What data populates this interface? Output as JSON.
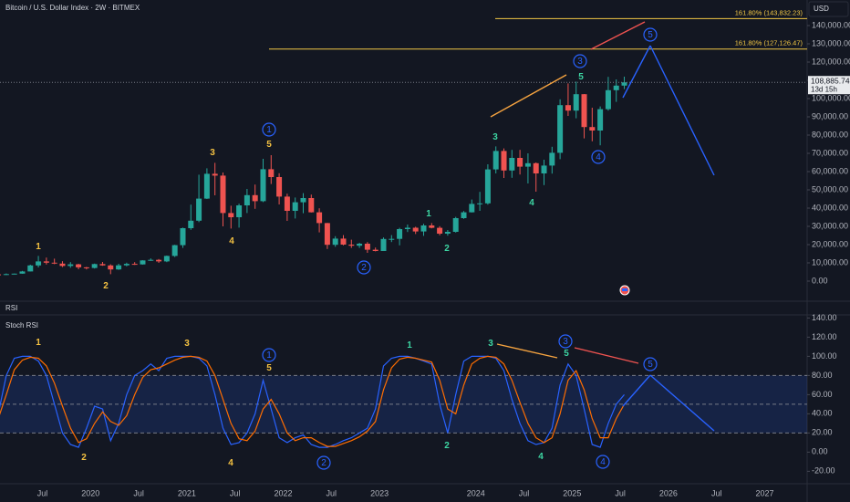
{
  "title": "Bitcoin / U.S. Dollar Index · 2W · BITMEX",
  "rsi_pane": {
    "title": "RSI"
  },
  "time_axis": {
    "xlim": [
      2019.06,
      2027.44
    ],
    "xticks": [
      {
        "value": 2019.5,
        "label": "Jul"
      },
      2020,
      {
        "value": 2020.5,
        "label": "Jul"
      },
      2021,
      {
        "value": 2021.5,
        "label": "Jul"
      },
      2022,
      {
        "value": 2022.5,
        "label": "Jul"
      },
      2023,
      2024,
      {
        "value": 2024.5,
        "label": "Jul"
      },
      2025,
      {
        "value": 2025.5,
        "label": "Jul"
      },
      2026,
      {
        "value": 2026.5,
        "label": "Jul"
      },
      2027
    ]
  },
  "chart_data": [
    {
      "type": "candlestick",
      "y_axis_label": "USD",
      "up_color": "#26a69a",
      "down_color": "#ef5350",
      "x": [
        "2019-01",
        "2019-02",
        "2019-03",
        "2019-04",
        "2019-05",
        "2019-06",
        "2019-07",
        "2019-08",
        "2019-09",
        "2019-10",
        "2019-11",
        "2019-12",
        "2020-01",
        "2020-02",
        "2020-03",
        "2020-04",
        "2020-05",
        "2020-06",
        "2020-07",
        "2020-08",
        "2020-09",
        "2020-10",
        "2020-11",
        "2020-12",
        "2021-01",
        "2021-02",
        "2021-03",
        "2021-04",
        "2021-05",
        "2021-06",
        "2021-07",
        "2021-08",
        "2021-09",
        "2021-10",
        "2021-11",
        "2021-12",
        "2022-01",
        "2022-02",
        "2022-03",
        "2022-04",
        "2022-05",
        "2022-06",
        "2022-07",
        "2022-08",
        "2022-09",
        "2022-10",
        "2022-11",
        "2022-12",
        "2023-01",
        "2023-02",
        "2023-03",
        "2023-04",
        "2023-05",
        "2023-06",
        "2023-07",
        "2023-08",
        "2023-09",
        "2023-10",
        "2023-11",
        "2023-12",
        "2024-01",
        "2024-02",
        "2024-03",
        "2024-04",
        "2024-05",
        "2024-06",
        "2024-07",
        "2024-08",
        "2024-09",
        "2024-10",
        "2024-11",
        "2024-12",
        "2025-01",
        "2025-02",
        "2025-03",
        "2025-04",
        "2025-05",
        "2025-06",
        "2025-07"
      ],
      "open": [
        3700,
        3450,
        3850,
        4100,
        5300,
        8600,
        10800,
        10100,
        9600,
        8300,
        9200,
        7550,
        7200,
        9350,
        8600,
        6400,
        8650,
        9450,
        9150,
        11350,
        11650,
        10800,
        13800,
        19700,
        29000,
        33100,
        45200,
        58800,
        57800,
        37300,
        35000,
        41500,
        47100,
        43800,
        61300,
        57000,
        46300,
        38500,
        43200,
        45500,
        37700,
        31800,
        19900,
        23300,
        20000,
        19400,
        20500,
        17200,
        16500,
        23100,
        23150,
        28500,
        29250,
        27200,
        30500,
        29200,
        26000,
        27000,
        34500,
        37700,
        42300,
        42600,
        61200,
        71300,
        60600,
        67500,
        62700,
        64600,
        59000,
        63300,
        70300,
        96400,
        93400,
        102400,
        84400,
        82500,
        94200,
        104600,
        107100
      ],
      "high": [
        3900,
        4200,
        4150,
        5600,
        9000,
        13800,
        12900,
        12300,
        10900,
        10400,
        9500,
        7800,
        9600,
        10500,
        9200,
        9500,
        10100,
        10400,
        11450,
        12450,
        12100,
        14000,
        19900,
        29300,
        41900,
        58300,
        61800,
        64800,
        59500,
        41300,
        42400,
        50500,
        52900,
        67000,
        69000,
        59100,
        47900,
        45800,
        48200,
        47400,
        39900,
        31900,
        24600,
        25200,
        22700,
        21000,
        21400,
        18400,
        23900,
        25200,
        29200,
        31000,
        29800,
        31400,
        31800,
        30100,
        28000,
        35200,
        38400,
        44700,
        48900,
        64000,
        73800,
        72700,
        71900,
        71900,
        70000,
        65000,
        66500,
        73600,
        99600,
        108300,
        109300,
        102500,
        95000,
        95700,
        111900,
        110500,
        112000
      ],
      "low": [
        3350,
        3350,
        3700,
        4050,
        5300,
        7500,
        9100,
        9300,
        7700,
        7300,
        6500,
        6400,
        6900,
        8400,
        3800,
        6150,
        8100,
        8900,
        9050,
        11100,
        10000,
        10400,
        13200,
        18200,
        28100,
        32300,
        45000,
        47000,
        30000,
        28800,
        29300,
        37300,
        39600,
        43300,
        53200,
        42000,
        33000,
        34300,
        37200,
        37600,
        26700,
        17600,
        18800,
        19600,
        18200,
        18200,
        15500,
        16300,
        16500,
        21400,
        19600,
        26900,
        25800,
        24800,
        28900,
        25100,
        24900,
        26600,
        34100,
        37600,
        38500,
        41900,
        59000,
        56500,
        56600,
        58400,
        53500,
        49000,
        52600,
        58900,
        66800,
        90500,
        89200,
        78200,
        76600,
        74400,
        93400,
        98200,
        105200
      ],
      "close": [
        3450,
        3850,
        4100,
        5300,
        8600,
        10800,
        10100,
        9600,
        8300,
        9200,
        7550,
        7200,
        9350,
        8600,
        6400,
        8650,
        9450,
        9150,
        11350,
        11650,
        10800,
        13800,
        19700,
        29000,
        33100,
        45200,
        58800,
        57800,
        37300,
        35000,
        41500,
        47100,
        43800,
        61300,
        57000,
        46300,
        38500,
        43200,
        45500,
        37700,
        31800,
        19900,
        23300,
        20000,
        19400,
        20500,
        17200,
        16500,
        23100,
        23150,
        28500,
        29250,
        27200,
        30500,
        29200,
        26000,
        27000,
        34500,
        37700,
        42300,
        42600,
        61200,
        71300,
        60600,
        67500,
        62700,
        64600,
        59000,
        63300,
        70300,
        96400,
        93400,
        102400,
        84400,
        82500,
        94200,
        104600,
        107100,
        108900
      ],
      "ylim": [
        -11000,
        154000
      ],
      "yticks": [
        {
          "value": 0,
          "label": "0.00"
        },
        {
          "value": 10000,
          "label": "10,000.00"
        },
        {
          "value": 20000,
          "label": "20,000.00"
        },
        {
          "value": 30000,
          "label": "30,000.00"
        },
        {
          "value": 40000,
          "label": "40,000.00"
        },
        {
          "value": 50000,
          "label": "50,000.00"
        },
        {
          "value": 60000,
          "label": "60,000.00"
        },
        {
          "value": 70000,
          "label": "70,000.00"
        },
        {
          "value": 80000,
          "label": "80,000.00"
        },
        {
          "value": 90000,
          "label": "90,000.00"
        },
        {
          "value": 100000,
          "label": "100,000.00"
        },
        {
          "value": 110000,
          "label": "110,000.00"
        },
        {
          "value": 120000,
          "label": "120,000.00"
        },
        {
          "value": 130000,
          "label": "130,000.00"
        },
        {
          "value": 140000,
          "label": "140,000.00"
        }
      ],
      "grid": false,
      "levels": [
        {
          "value": 143832.23,
          "label": "161.80% (143,832.23)"
        },
        {
          "value": 127126.47,
          "label": "161.80% (127,126.47)"
        }
      ],
      "level_color": "#f2c744",
      "last_price": {
        "value": 108885.74,
        "label": "108,885.74"
      },
      "countdown": "13d 15h",
      "wave_labels": [
        "1",
        "2",
        "3",
        "4",
        "1",
        "5",
        "2",
        "1",
        "2",
        "3",
        "4",
        "3",
        "5",
        "4",
        "5"
      ]
    },
    {
      "type": "line",
      "title": "Stoch RSI",
      "x": [
        "2019-01",
        "2019-02",
        "2019-03",
        "2019-04",
        "2019-05",
        "2019-06",
        "2019-07",
        "2019-08",
        "2019-09",
        "2019-10",
        "2019-11",
        "2019-12",
        "2020-01",
        "2020-02",
        "2020-03",
        "2020-04",
        "2020-05",
        "2020-06",
        "2020-07",
        "2020-08",
        "2020-09",
        "2020-10",
        "2020-11",
        "2020-12",
        "2021-01",
        "2021-02",
        "2021-03",
        "2021-04",
        "2021-05",
        "2021-06",
        "2021-07",
        "2021-08",
        "2021-09",
        "2021-10",
        "2021-11",
        "2021-12",
        "2022-01",
        "2022-02",
        "2022-03",
        "2022-04",
        "2022-05",
        "2022-06",
        "2022-07",
        "2022-08",
        "2022-09",
        "2022-10",
        "2022-11",
        "2022-12",
        "2023-01",
        "2023-02",
        "2023-03",
        "2023-04",
        "2023-05",
        "2023-06",
        "2023-07",
        "2023-08",
        "2023-09",
        "2023-10",
        "2023-11",
        "2023-12",
        "2024-01",
        "2024-02",
        "2024-03",
        "2024-04",
        "2024-05",
        "2024-06",
        "2024-07",
        "2024-08",
        "2024-09",
        "2024-10",
        "2024-11",
        "2024-12",
        "2025-01",
        "2025-02",
        "2025-03",
        "2025-04",
        "2025-05",
        "2025-06",
        "2025-07"
      ],
      "series": [
        {
          "color": "#2962ff",
          "values": [
            40,
            80,
            98,
            100,
            100,
            95,
            80,
            50,
            20,
            8,
            5,
            25,
            48,
            45,
            12,
            30,
            60,
            80,
            85,
            92,
            85,
            98,
            100,
            100,
            100,
            98,
            90,
            60,
            25,
            8,
            10,
            20,
            40,
            75,
            45,
            15,
            10,
            15,
            18,
            8,
            5,
            5,
            8,
            12,
            15,
            20,
            25,
            45,
            90,
            98,
            100,
            100,
            98,
            95,
            92,
            50,
            20,
            60,
            95,
            100,
            100,
            100,
            98,
            85,
            55,
            30,
            12,
            8,
            10,
            25,
            70,
            92,
            80,
            45,
            8,
            5,
            30,
            50,
            60
          ]
        },
        {
          "color": "#ff6d00",
          "values": [
            35,
            60,
            86,
            96,
            99,
            98,
            90,
            72,
            48,
            25,
            10,
            14,
            30,
            42,
            32,
            28,
            38,
            60,
            78,
            86,
            88,
            92,
            96,
            99,
            100,
            99,
            95,
            80,
            55,
            30,
            14,
            12,
            22,
            45,
            55,
            40,
            20,
            12,
            15,
            15,
            10,
            6,
            6,
            9,
            12,
            16,
            22,
            32,
            65,
            88,
            97,
            99,
            98,
            96,
            94,
            75,
            45,
            40,
            70,
            92,
            98,
            100,
            99,
            92,
            75,
            52,
            30,
            15,
            10,
            15,
            40,
            75,
            85,
            65,
            35,
            15,
            15,
            35,
            50
          ]
        }
      ],
      "ylim": [
        -33,
        148
      ],
      "yticks": [
        {
          "value": -20,
          "label": "-20.00"
        },
        {
          "value": 0,
          "label": "0.00"
        },
        {
          "value": 20,
          "label": "20.00"
        },
        {
          "value": 40,
          "label": "40.00"
        },
        {
          "value": 60,
          "label": "60.00"
        },
        {
          "value": 80,
          "label": "80.00"
        },
        {
          "value": 100,
          "label": "100.00"
        },
        {
          "value": 120,
          "label": "120.00"
        },
        {
          "value": 140,
          "label": "140.00"
        }
      ],
      "bands": {
        "upper": 80,
        "middle": 50,
        "lower": 20
      },
      "wave_labels": [
        "1",
        "2",
        "3",
        "4",
        "1",
        "5",
        "2",
        "1",
        "2",
        "3",
        "4",
        "3",
        "5",
        "4",
        "5"
      ]
    }
  ]
}
